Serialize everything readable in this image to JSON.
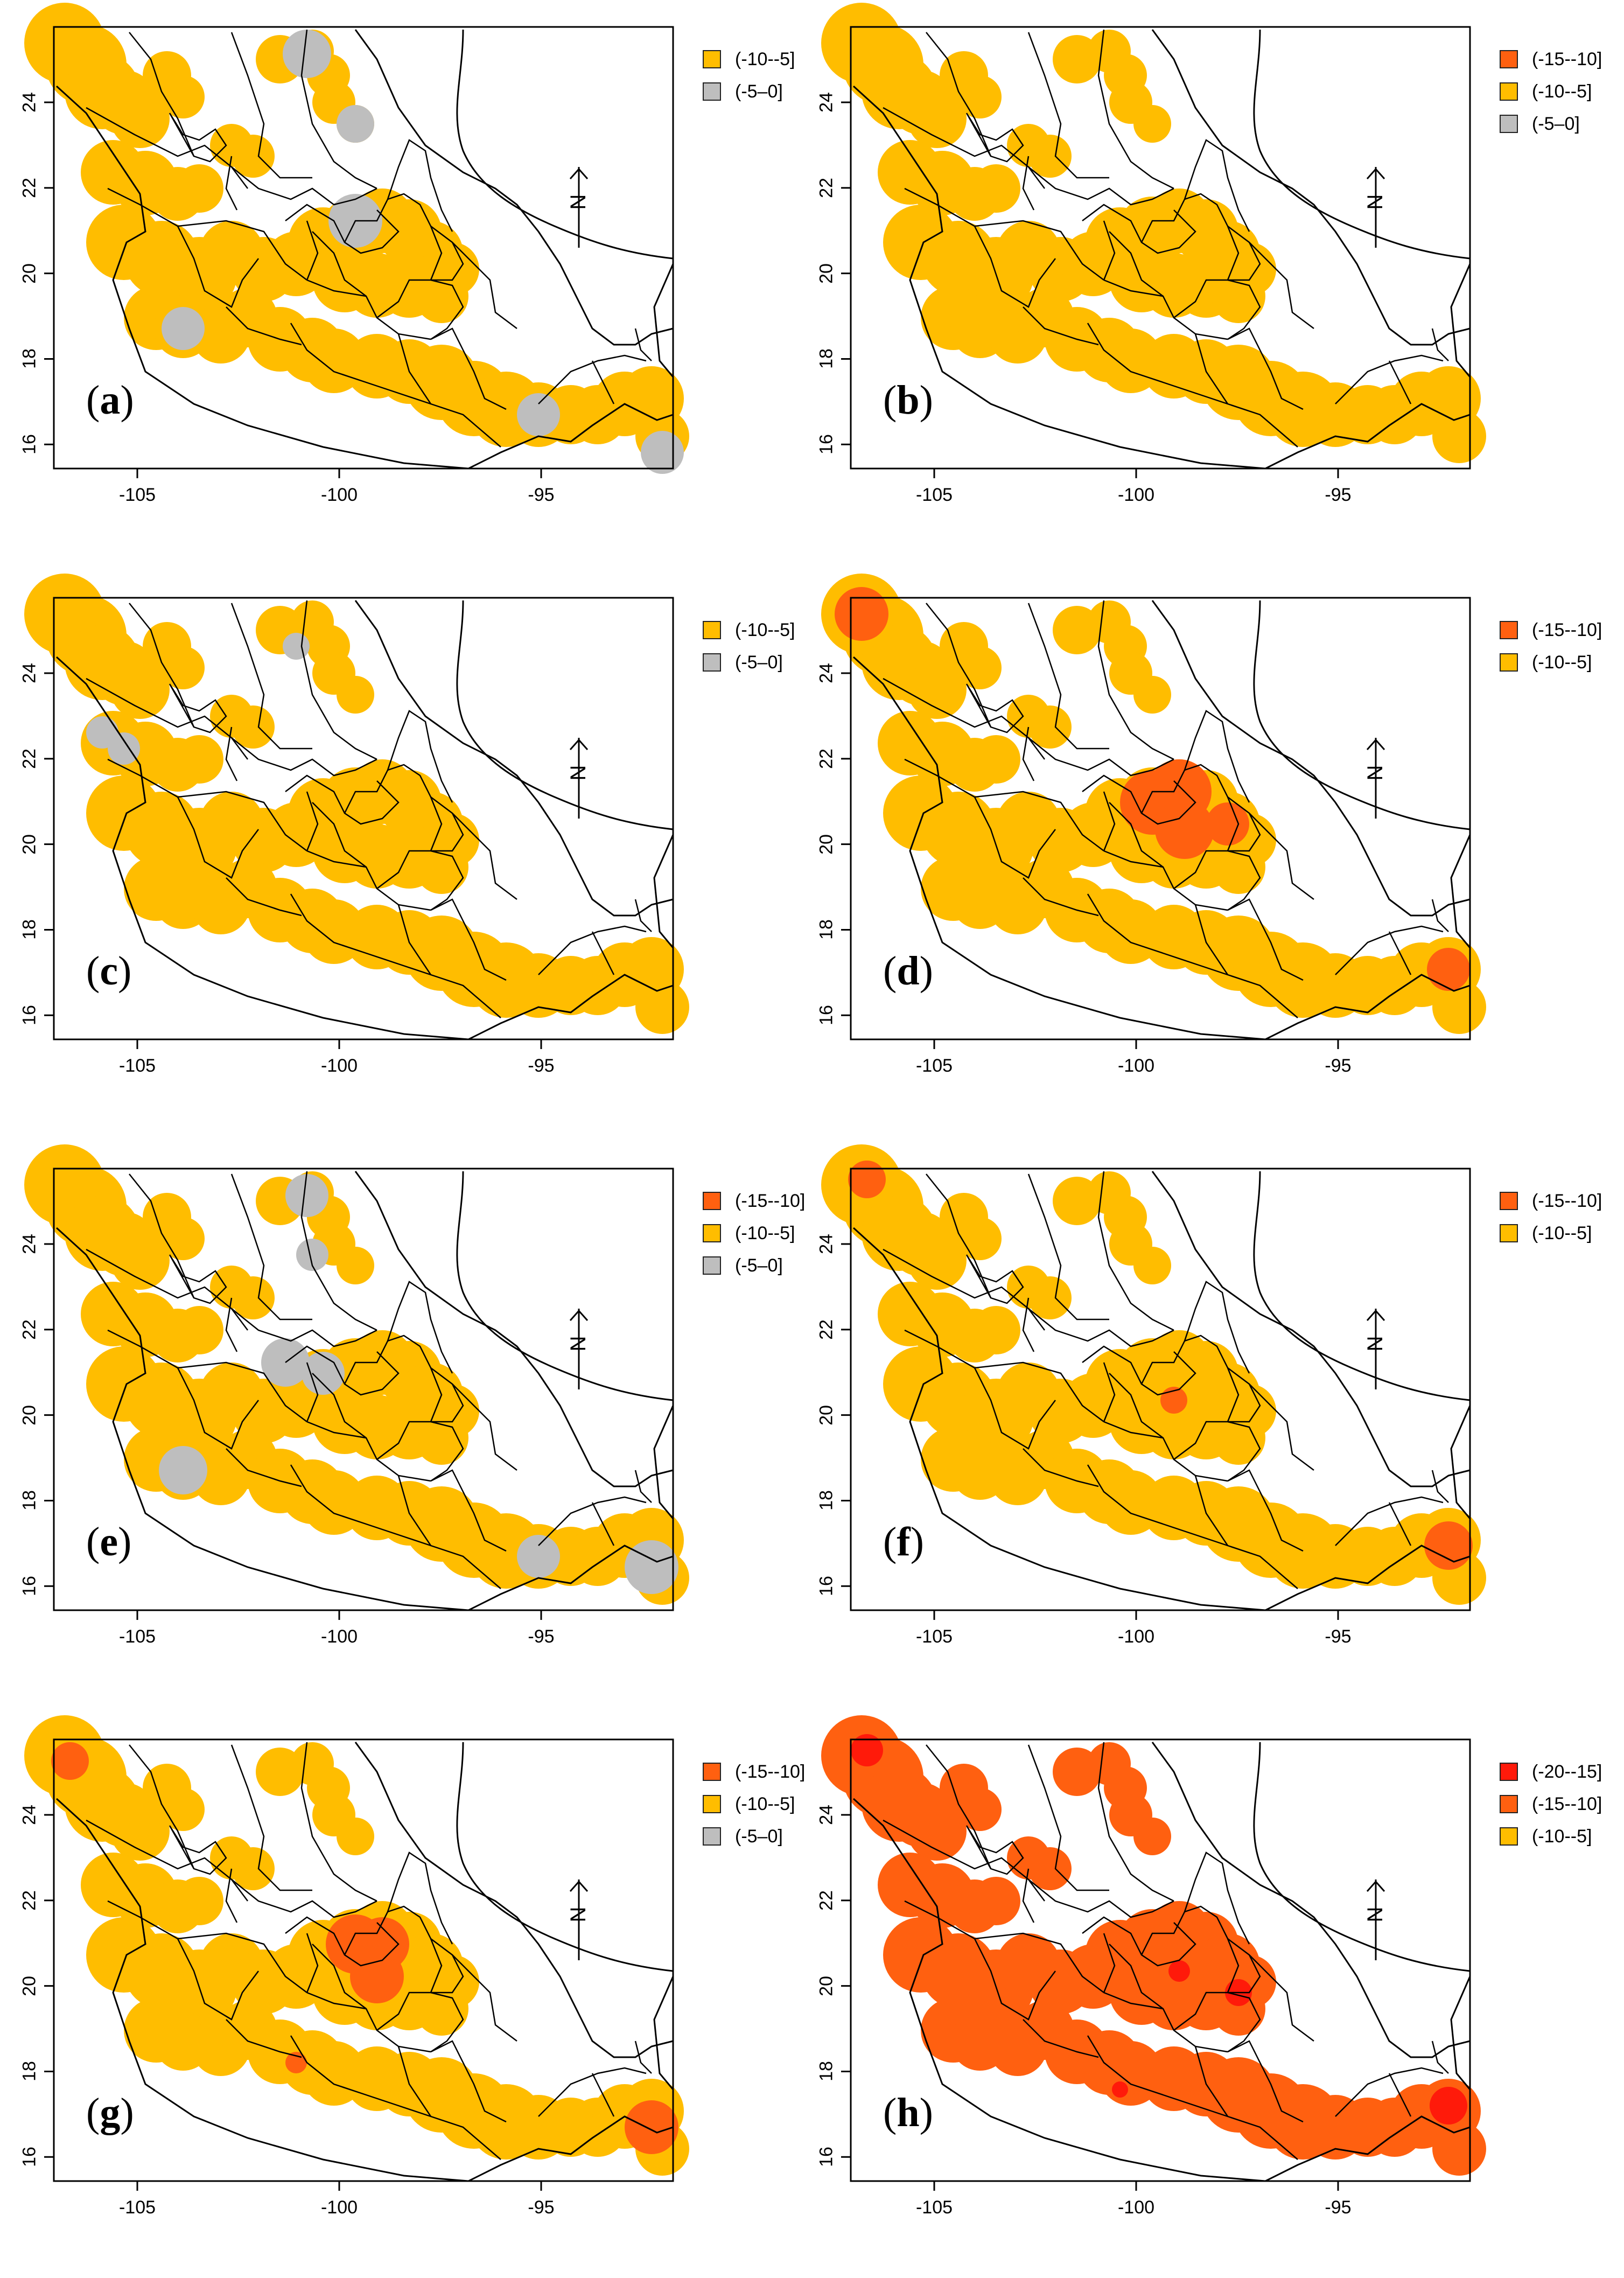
{
  "colors": {
    "c_20_15": "#ff1a0a",
    "c_15_10": "#ff6010",
    "c_10_5": "#ffbd00",
    "c_5_0": "#bebebe"
  },
  "north_arrow": "N",
  "axes": {
    "x_ticks": [
      "-105",
      "-100",
      "-95"
    ],
    "y_ticks": [
      "24",
      "22",
      "20",
      "18",
      "16"
    ]
  },
  "panels": [
    {
      "label": "a",
      "legend": [
        {
          "color": "#ffbd00",
          "text": "(-10--5]"
        },
        {
          "color": "#bebebe",
          "text": "(-5–0]"
        }
      ]
    },
    {
      "label": "b",
      "legend": [
        {
          "color": "#ff6010",
          "text": "(-15--10]"
        },
        {
          "color": "#ffbd00",
          "text": "(-10--5]"
        },
        {
          "color": "#bebebe",
          "text": "(-5–0]"
        }
      ]
    },
    {
      "label": "c",
      "legend": [
        {
          "color": "#ffbd00",
          "text": "(-10--5]"
        },
        {
          "color": "#bebebe",
          "text": "(-5–0]"
        }
      ]
    },
    {
      "label": "d",
      "legend": [
        {
          "color": "#ff6010",
          "text": "(-15--10]"
        },
        {
          "color": "#ffbd00",
          "text": "(-10--5]"
        }
      ]
    },
    {
      "label": "e",
      "legend": [
        {
          "color": "#ff6010",
          "text": "(-15--10]"
        },
        {
          "color": "#ffbd00",
          "text": "(-10--5]"
        },
        {
          "color": "#bebebe",
          "text": "(-5–0]"
        }
      ]
    },
    {
      "label": "f",
      "legend": [
        {
          "color": "#ff6010",
          "text": "(-15--10]"
        },
        {
          "color": "#ffbd00",
          "text": "(-10--5]"
        }
      ]
    },
    {
      "label": "g",
      "legend": [
        {
          "color": "#ff6010",
          "text": "(-15--10]"
        },
        {
          "color": "#ffbd00",
          "text": "(-10--5]"
        },
        {
          "color": "#bebebe",
          "text": "(-5–0]"
        }
      ]
    },
    {
      "label": "h",
      "legend": [
        {
          "color": "#ff1a0a",
          "text": "(-20--15]"
        },
        {
          "color": "#ff6010",
          "text": "(-15--10]"
        },
        {
          "color": "#ffbd00",
          "text": "(-10--5]"
        }
      ]
    }
  ]
}
